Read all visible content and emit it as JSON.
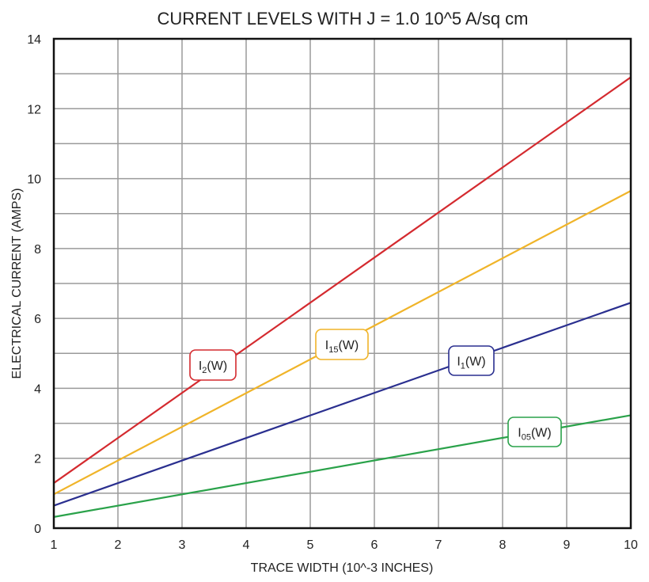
{
  "chart_data": {
    "type": "line",
    "title": "CURRENT LEVELS WITH J = 1.0 10^5 A/sq cm",
    "xlabel": "TRACE WIDTH (10^-3 INCHES)",
    "ylabel": "ELECTRICAL CURRENT (AMPS)",
    "xlim": [
      1,
      10
    ],
    "ylim": [
      0,
      14
    ],
    "xticks": [
      1,
      2,
      3,
      4,
      5,
      6,
      7,
      8,
      9,
      10
    ],
    "yticks": [
      0,
      2,
      4,
      6,
      8,
      10,
      12,
      14
    ],
    "grid": true,
    "series": [
      {
        "name": "I2(W)",
        "label_base": "I",
        "label_sub": "2",
        "label_suffix": "(W)",
        "color": "#d42a2f",
        "x": [
          1,
          10
        ],
        "y": [
          1.29,
          12.9
        ]
      },
      {
        "name": "I15(W)",
        "label_base": "I",
        "label_sub": "15",
        "label_suffix": "(W)",
        "color": "#f0b429",
        "x": [
          1,
          10
        ],
        "y": [
          0.97,
          9.65
        ]
      },
      {
        "name": "I1(W)",
        "label_base": "I",
        "label_sub": "1",
        "label_suffix": "(W)",
        "color": "#2a2f8f",
        "x": [
          1,
          10
        ],
        "y": [
          0.645,
          6.45
        ]
      },
      {
        "name": "I05(W)",
        "label_base": "I",
        "label_sub": "05",
        "label_suffix": "(W)",
        "color": "#2aa24a",
        "x": [
          1,
          10
        ],
        "y": [
          0.32,
          3.23
        ]
      }
    ]
  }
}
